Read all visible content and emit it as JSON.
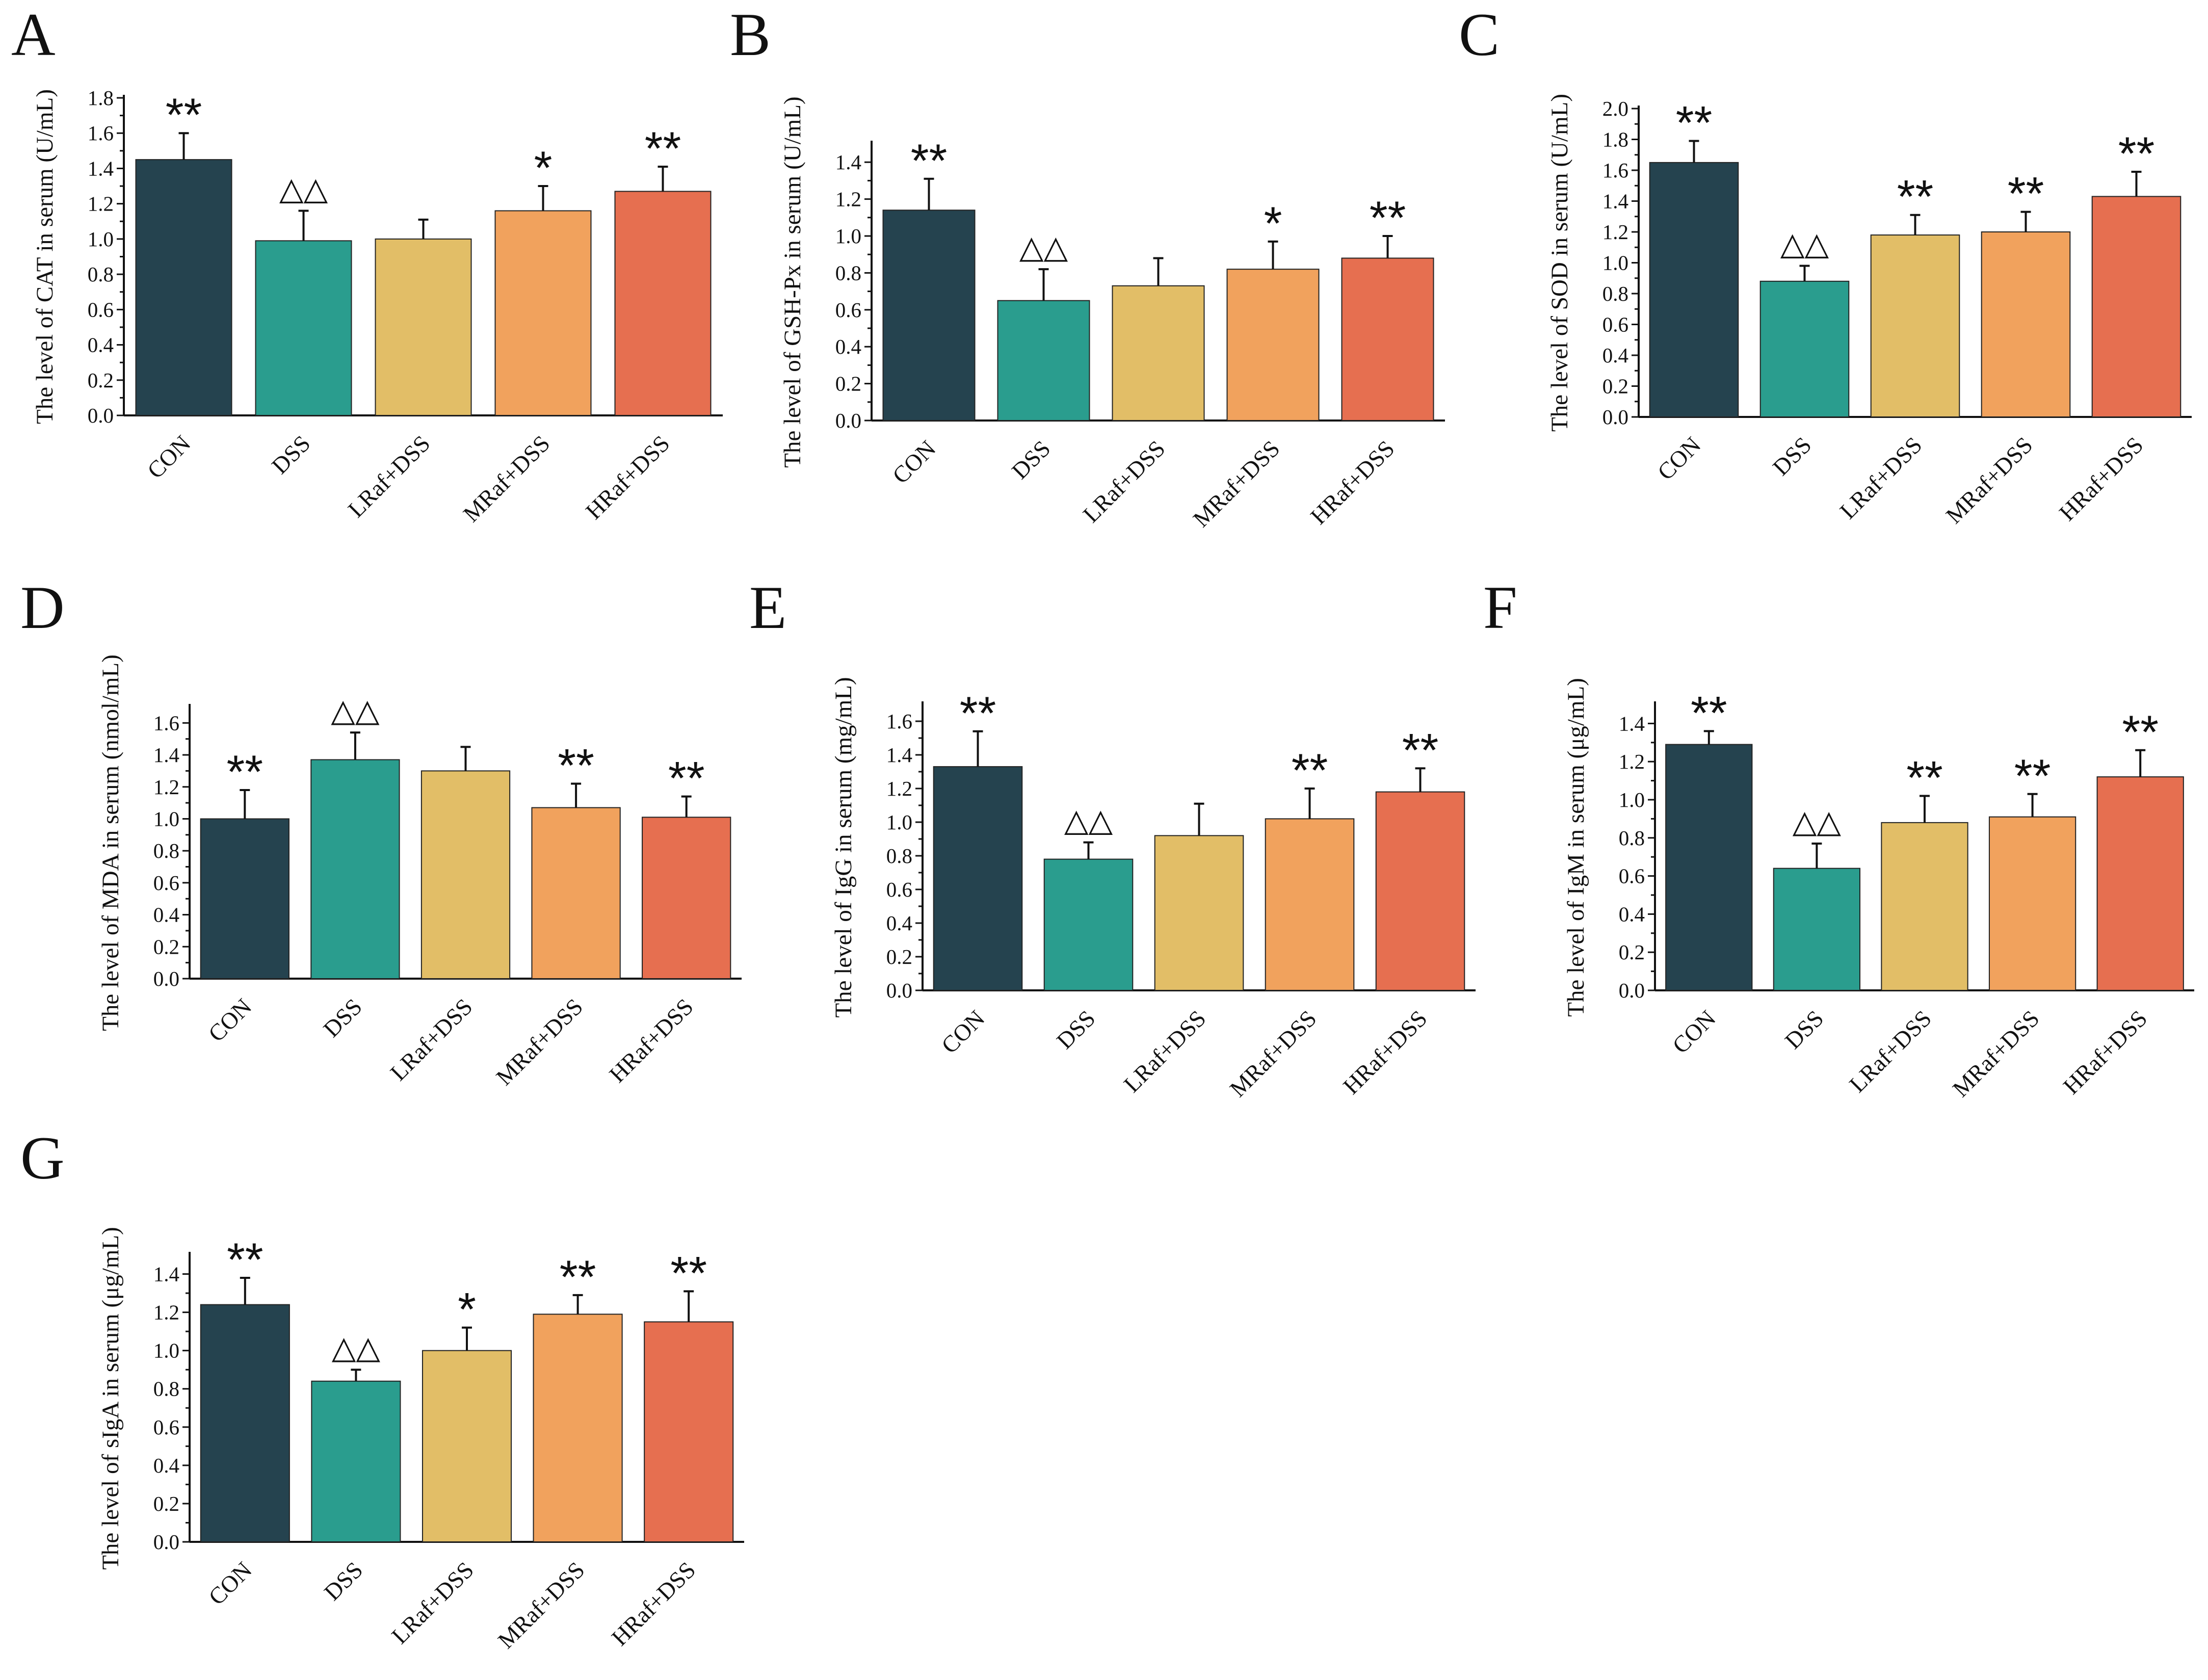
{
  "colors": {
    "CON": "#25434f",
    "DSS": "#2a9d8e",
    "LRaf+DSS": "#e2be67",
    "MRaf+DSS": "#f1a25d",
    "HRaf+DSS": "#e66f50",
    "axis": "#111111"
  },
  "chart_data": [
    {
      "panel": "A",
      "type": "bar",
      "ylabel": "The level of CAT in serum (U/mL)",
      "categories": [
        "CON",
        "DSS",
        "LRaf+DSS",
        "MRaf+DSS",
        "HRaf+DSS"
      ],
      "values": [
        1.45,
        0.99,
        1.0,
        1.16,
        1.27
      ],
      "errors": [
        0.15,
        0.17,
        0.11,
        0.14,
        0.14
      ],
      "significance": [
        "**",
        "△△",
        "",
        "*",
        "**"
      ],
      "ylim": [
        0,
        1.8
      ],
      "yticks": [
        "0.0",
        "0.2",
        "0.4",
        "0.6",
        "0.8",
        "1.0",
        "1.2",
        "1.4",
        "1.6",
        "1.8"
      ]
    },
    {
      "panel": "B",
      "type": "bar",
      "ylabel": "The level of GSH-Px in serum (U/mL)",
      "categories": [
        "CON",
        "DSS",
        "LRaf+DSS",
        "MRaf+DSS",
        "HRaf+DSS"
      ],
      "values": [
        1.14,
        0.65,
        0.73,
        0.82,
        0.88
      ],
      "errors": [
        0.17,
        0.17,
        0.15,
        0.15,
        0.12
      ],
      "significance": [
        "**",
        "△△",
        "",
        "*",
        "**"
      ],
      "ylim": [
        0,
        1.5
      ],
      "yticks": [
        "0.0",
        "0.2",
        "0.4",
        "0.6",
        "0.8",
        "1.0",
        "1.2",
        "1.4"
      ]
    },
    {
      "panel": "C",
      "type": "bar",
      "ylabel": "The level of SOD in serum (U/mL)",
      "categories": [
        "CON",
        "DSS",
        "LRaf+DSS",
        "MRaf+DSS",
        "HRaf+DSS"
      ],
      "values": [
        1.65,
        0.88,
        1.18,
        1.2,
        1.43
      ],
      "errors": [
        0.14,
        0.1,
        0.13,
        0.13,
        0.16
      ],
      "significance": [
        "**",
        "△△",
        "**",
        "**",
        "**"
      ],
      "ylim": [
        0,
        2.0
      ],
      "yticks": [
        "0.0",
        "0.2",
        "0.4",
        "0.6",
        "0.8",
        "1.0",
        "1.2",
        "1.4",
        "1.6",
        "1.8",
        "2.0"
      ]
    },
    {
      "panel": "D",
      "type": "bar",
      "ylabel": "The level of MDA in serum (nmol/mL)",
      "categories": [
        "CON",
        "DSS",
        "LRaf+DSS",
        "MRaf+DSS",
        "HRaf+DSS"
      ],
      "values": [
        1.0,
        1.37,
        1.3,
        1.07,
        1.01
      ],
      "errors": [
        0.18,
        0.17,
        0.15,
        0.15,
        0.13
      ],
      "significance": [
        "**",
        "△△",
        "",
        "**",
        "**"
      ],
      "ylim": [
        0,
        1.7
      ],
      "yticks": [
        "0.0",
        "0.2",
        "0.4",
        "0.6",
        "0.8",
        "1.0",
        "1.2",
        "1.4",
        "1.6"
      ]
    },
    {
      "panel": "E",
      "type": "bar",
      "ylabel": "The level of IgG in serum (mg/mL)",
      "categories": [
        "CON",
        "DSS",
        "LRaf+DSS",
        "MRaf+DSS",
        "HRaf+DSS"
      ],
      "values": [
        1.33,
        0.78,
        0.92,
        1.02,
        1.18
      ],
      "errors": [
        0.21,
        0.1,
        0.19,
        0.18,
        0.14
      ],
      "significance": [
        "**",
        "△△",
        "",
        "**",
        "**"
      ],
      "ylim": [
        0,
        1.7
      ],
      "yticks": [
        "0.0",
        "0.2",
        "0.4",
        "0.6",
        "0.8",
        "1.0",
        "1.2",
        "1.4",
        "1.6"
      ]
    },
    {
      "panel": "F",
      "type": "bar",
      "ylabel": "The level of IgM in serum (μg/mL)",
      "categories": [
        "CON",
        "DSS",
        "LRaf+DSS",
        "MRaf+DSS",
        "HRaf+DSS"
      ],
      "values": [
        1.29,
        0.64,
        0.88,
        0.91,
        1.12
      ],
      "errors": [
        0.07,
        0.13,
        0.14,
        0.12,
        0.14
      ],
      "significance": [
        "**",
        "△△",
        "**",
        "**",
        "**"
      ],
      "ylim": [
        0,
        1.5
      ],
      "yticks": [
        "0.0",
        "0.2",
        "0.4",
        "0.6",
        "0.8",
        "1.0",
        "1.2",
        "1.4"
      ]
    },
    {
      "panel": "G",
      "type": "bar",
      "ylabel": "The level of sIgA in serum (μg/mL)",
      "categories": [
        "CON",
        "DSS",
        "LRaf+DSS",
        "MRaf+DSS",
        "HRaf+DSS"
      ],
      "values": [
        1.24,
        0.84,
        1.0,
        1.19,
        1.15
      ],
      "errors": [
        0.14,
        0.06,
        0.12,
        0.1,
        0.16
      ],
      "significance": [
        "**",
        "△△",
        "*",
        "**",
        "**"
      ],
      "ylim": [
        0,
        1.5
      ],
      "yticks": [
        "0.0",
        "0.2",
        "0.4",
        "0.6",
        "0.8",
        "1.0",
        "1.2",
        "1.4"
      ]
    }
  ]
}
